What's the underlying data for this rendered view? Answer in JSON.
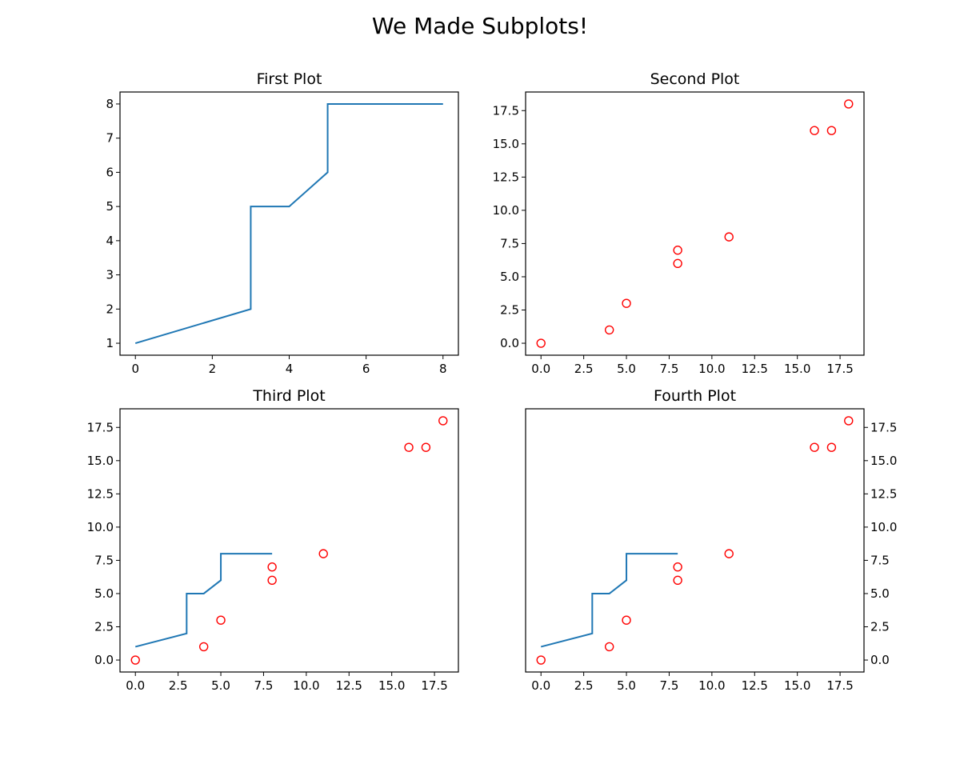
{
  "figure": {
    "title": "We Made Subplots!"
  },
  "colors": {
    "line": "#1f77b4",
    "scatter": "#ff0000",
    "axes": "#000000"
  },
  "chart_data": [
    {
      "type": "line",
      "title": "First Plot",
      "xlabel": "",
      "ylabel": "",
      "xlim": [
        -0.4,
        8.4
      ],
      "ylim": [
        0.65,
        8.35
      ],
      "xticks": [
        0,
        2,
        4,
        6,
        8
      ],
      "xtick_labels": [
        "0",
        "2",
        "4",
        "6",
        "8"
      ],
      "yticks": [
        1,
        2,
        3,
        4,
        5,
        6,
        7,
        8
      ],
      "ytick_labels": [
        "1",
        "2",
        "3",
        "4",
        "5",
        "6",
        "7",
        "8"
      ],
      "yaxis_side": "left",
      "grid": false,
      "series": [
        {
          "type": "line",
          "x": [
            0,
            3,
            3,
            4,
            5,
            5,
            8
          ],
          "y": [
            1,
            2,
            5,
            5,
            6,
            8,
            8
          ]
        }
      ]
    },
    {
      "type": "scatter",
      "title": "Second Plot",
      "xlabel": "",
      "ylabel": "",
      "xlim": [
        -0.9,
        18.9
      ],
      "ylim": [
        -0.9,
        18.9
      ],
      "xticks": [
        0,
        2.5,
        5,
        7.5,
        10,
        12.5,
        15,
        17.5
      ],
      "xtick_labels": [
        "0.0",
        "2.5",
        "5.0",
        "7.5",
        "10.0",
        "12.5",
        "15.0",
        "17.5"
      ],
      "yticks": [
        0,
        2.5,
        5,
        7.5,
        10,
        12.5,
        15,
        17.5
      ],
      "ytick_labels": [
        "0.0",
        "2.5",
        "5.0",
        "7.5",
        "10.0",
        "12.5",
        "15.0",
        "17.5"
      ],
      "yaxis_side": "left",
      "grid": false,
      "series": [
        {
          "type": "scatter",
          "x": [
            0,
            4,
            5,
            8,
            8,
            11,
            16,
            17,
            18
          ],
          "y": [
            0,
            1,
            3,
            6,
            7,
            8,
            16,
            16,
            18
          ]
        }
      ]
    },
    {
      "type": "scatter",
      "title": "Third Plot",
      "xlabel": "",
      "ylabel": "",
      "xlim": [
        -0.9,
        18.9
      ],
      "ylim": [
        -0.9,
        18.9
      ],
      "xticks": [
        0,
        2.5,
        5,
        7.5,
        10,
        12.5,
        15,
        17.5
      ],
      "xtick_labels": [
        "0.0",
        "2.5",
        "5.0",
        "7.5",
        "10.0",
        "12.5",
        "15.0",
        "17.5"
      ],
      "yticks": [
        0,
        2.5,
        5,
        7.5,
        10,
        12.5,
        15,
        17.5
      ],
      "ytick_labels": [
        "0.0",
        "2.5",
        "5.0",
        "7.5",
        "10.0",
        "12.5",
        "15.0",
        "17.5"
      ],
      "yaxis_side": "left",
      "grid": false,
      "series": [
        {
          "type": "line",
          "x": [
            0,
            3,
            3,
            4,
            5,
            5,
            8
          ],
          "y": [
            1,
            2,
            5,
            5,
            6,
            8,
            8
          ]
        },
        {
          "type": "scatter",
          "x": [
            0,
            4,
            5,
            8,
            8,
            11,
            16,
            17,
            18
          ],
          "y": [
            0,
            1,
            3,
            6,
            7,
            8,
            16,
            16,
            18
          ]
        }
      ]
    },
    {
      "type": "scatter",
      "title": "Fourth Plot",
      "xlabel": "",
      "ylabel": "",
      "xlim": [
        -0.9,
        18.9
      ],
      "ylim": [
        -0.9,
        18.9
      ],
      "xticks": [
        0,
        2.5,
        5,
        7.5,
        10,
        12.5,
        15,
        17.5
      ],
      "xtick_labels": [
        "0.0",
        "2.5",
        "5.0",
        "7.5",
        "10.0",
        "12.5",
        "15.0",
        "17.5"
      ],
      "yticks": [
        0,
        2.5,
        5,
        7.5,
        10,
        12.5,
        15,
        17.5
      ],
      "ytick_labels": [
        "0.0",
        "2.5",
        "5.0",
        "7.5",
        "10.0",
        "12.5",
        "15.0",
        "17.5"
      ],
      "yaxis_side": "right",
      "grid": false,
      "series": [
        {
          "type": "line",
          "x": [
            0,
            3,
            3,
            4,
            5,
            5,
            8
          ],
          "y": [
            1,
            2,
            5,
            5,
            6,
            8,
            8
          ]
        },
        {
          "type": "scatter",
          "x": [
            0,
            4,
            5,
            8,
            8,
            11,
            16,
            17,
            18
          ],
          "y": [
            0,
            1,
            3,
            6,
            7,
            8,
            16,
            16,
            18
          ]
        }
      ]
    }
  ]
}
